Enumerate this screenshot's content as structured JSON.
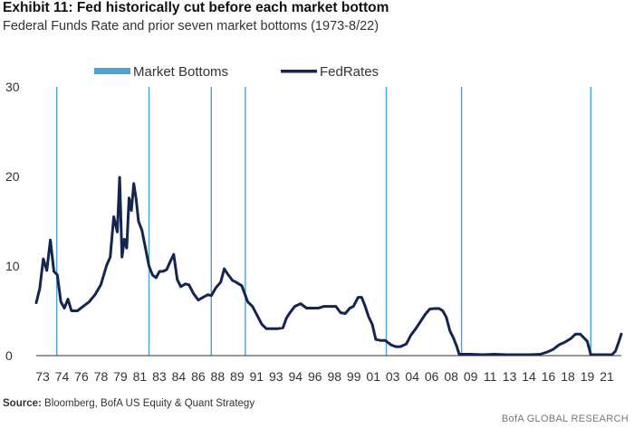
{
  "header": {
    "title": "Exhibit 11: Fed historically cut before each market bottom",
    "subtitle": "Federal Funds Rate and prior seven market bottoms (1973-8/22)"
  },
  "source": {
    "label": "Source:",
    "text": "Bloomberg, BofA US Equity & Quant Strategy"
  },
  "footer": {
    "brand": "BofA GLOBAL RESEARCH"
  },
  "colors": {
    "fed_line": "#15254f",
    "bottom_line": "#4aa3d9",
    "axis": "#333333"
  },
  "chart_data": {
    "type": "line",
    "title": "Exhibit 11: Fed historically cut before each market bottom",
    "subtitle": "Federal Funds Rate and prior seven market bottoms (1973-8/22)",
    "xlabel": "",
    "ylabel": "",
    "xlim": [
      1973,
      2022.8
    ],
    "ylim": [
      0,
      30
    ],
    "y_ticks": [
      "0",
      "10",
      "20",
      "30"
    ],
    "y_tick_values": [
      0,
      10,
      20,
      30
    ],
    "x_ticks": [
      "73",
      "74",
      "76",
      "78",
      "79",
      "81",
      "83",
      "84",
      "86",
      "88",
      "89",
      "91",
      "93",
      "94",
      "96",
      "98",
      "99",
      "01",
      "03",
      "04",
      "06",
      "08",
      "09",
      "11",
      "13",
      "14",
      "16",
      "18",
      "19",
      "21"
    ],
    "legend": [
      "Market Bottoms",
      "FedRates"
    ],
    "legend_position": "top",
    "grid": false,
    "series": [
      {
        "name": "FedRates",
        "x": [
          1973.0,
          1973.3,
          1973.6,
          1973.9,
          1974.2,
          1974.5,
          1974.8,
          1975.1,
          1975.4,
          1975.7,
          1976.0,
          1976.5,
          1977.0,
          1977.5,
          1978.0,
          1978.5,
          1979.0,
          1979.3,
          1979.6,
          1979.9,
          1980.1,
          1980.3,
          1980.5,
          1980.7,
          1980.9,
          1981.1,
          1981.3,
          1981.5,
          1981.7,
          1982.0,
          1982.3,
          1982.6,
          1982.9,
          1983.2,
          1983.5,
          1983.8,
          1984.1,
          1984.4,
          1984.7,
          1985.0,
          1985.3,
          1985.7,
          1986.0,
          1986.4,
          1986.8,
          1987.2,
          1987.6,
          1987.9,
          1988.3,
          1988.7,
          1989.0,
          1989.3,
          1989.7,
          1990.0,
          1990.5,
          1991.0,
          1991.4,
          1991.8,
          1992.2,
          1992.6,
          1993.0,
          1993.5,
          1994.0,
          1994.3,
          1994.6,
          1995.0,
          1995.5,
          1996.0,
          1996.5,
          1997.0,
          1997.5,
          1998.0,
          1998.5,
          1998.9,
          1999.3,
          1999.7,
          2000.0,
          2000.4,
          2000.7,
          2001.0,
          2001.3,
          2001.6,
          2001.9,
          2002.3,
          2002.7,
          2003.2,
          2003.6,
          2004.0,
          2004.5,
          2004.9,
          2005.3,
          2005.7,
          2006.1,
          2006.5,
          2006.9,
          2007.3,
          2007.6,
          2007.9,
          2008.2,
          2008.5,
          2008.8,
          2009.0,
          2010.0,
          2011.0,
          2012.0,
          2013.0,
          2014.0,
          2015.0,
          2015.9,
          2016.5,
          2017.0,
          2017.5,
          2018.0,
          2018.5,
          2018.9,
          2019.3,
          2019.6,
          2019.9,
          2020.2,
          2020.5,
          2021.0,
          2021.5,
          2022.0,
          2022.3,
          2022.6,
          2022.8
        ],
        "values": [
          5.9,
          7.5,
          10.8,
          9.5,
          12.9,
          9.4,
          9.0,
          6.0,
          5.3,
          6.3,
          5.0,
          5.0,
          5.5,
          6.0,
          6.8,
          7.9,
          10.1,
          11.0,
          15.5,
          13.8,
          19.9,
          11.0,
          13.0,
          12.0,
          17.6,
          16.2,
          19.2,
          17.5,
          15.0,
          14.0,
          12.0,
          10.0,
          9.0,
          8.7,
          9.4,
          9.4,
          9.6,
          10.5,
          11.3,
          8.5,
          7.7,
          8.0,
          7.9,
          6.9,
          6.2,
          6.5,
          6.8,
          6.7,
          7.6,
          8.2,
          9.7,
          9.1,
          8.4,
          8.2,
          7.8,
          6.0,
          5.5,
          4.5,
          3.5,
          3.0,
          3.0,
          3.0,
          3.1,
          4.2,
          4.8,
          5.5,
          5.8,
          5.3,
          5.3,
          5.3,
          5.5,
          5.5,
          5.5,
          4.8,
          4.7,
          5.3,
          5.5,
          6.5,
          6.5,
          5.5,
          4.3,
          3.5,
          1.8,
          1.7,
          1.7,
          1.2,
          1.0,
          1.0,
          1.3,
          2.3,
          3.0,
          3.8,
          4.6,
          5.2,
          5.25,
          5.25,
          5.0,
          4.3,
          2.8,
          2.0,
          1.0,
          0.15,
          0.15,
          0.1,
          0.15,
          0.1,
          0.1,
          0.1,
          0.15,
          0.4,
          0.7,
          1.2,
          1.5,
          1.9,
          2.4,
          2.4,
          2.0,
          1.6,
          0.1,
          0.1,
          0.1,
          0.1,
          0.1,
          0.5,
          1.6,
          2.4
        ]
      }
    ],
    "market_bottoms": [
      1974.75,
      1982.6,
      1987.9,
      1990.8,
      2002.8,
      2009.2,
      2020.2
    ]
  }
}
